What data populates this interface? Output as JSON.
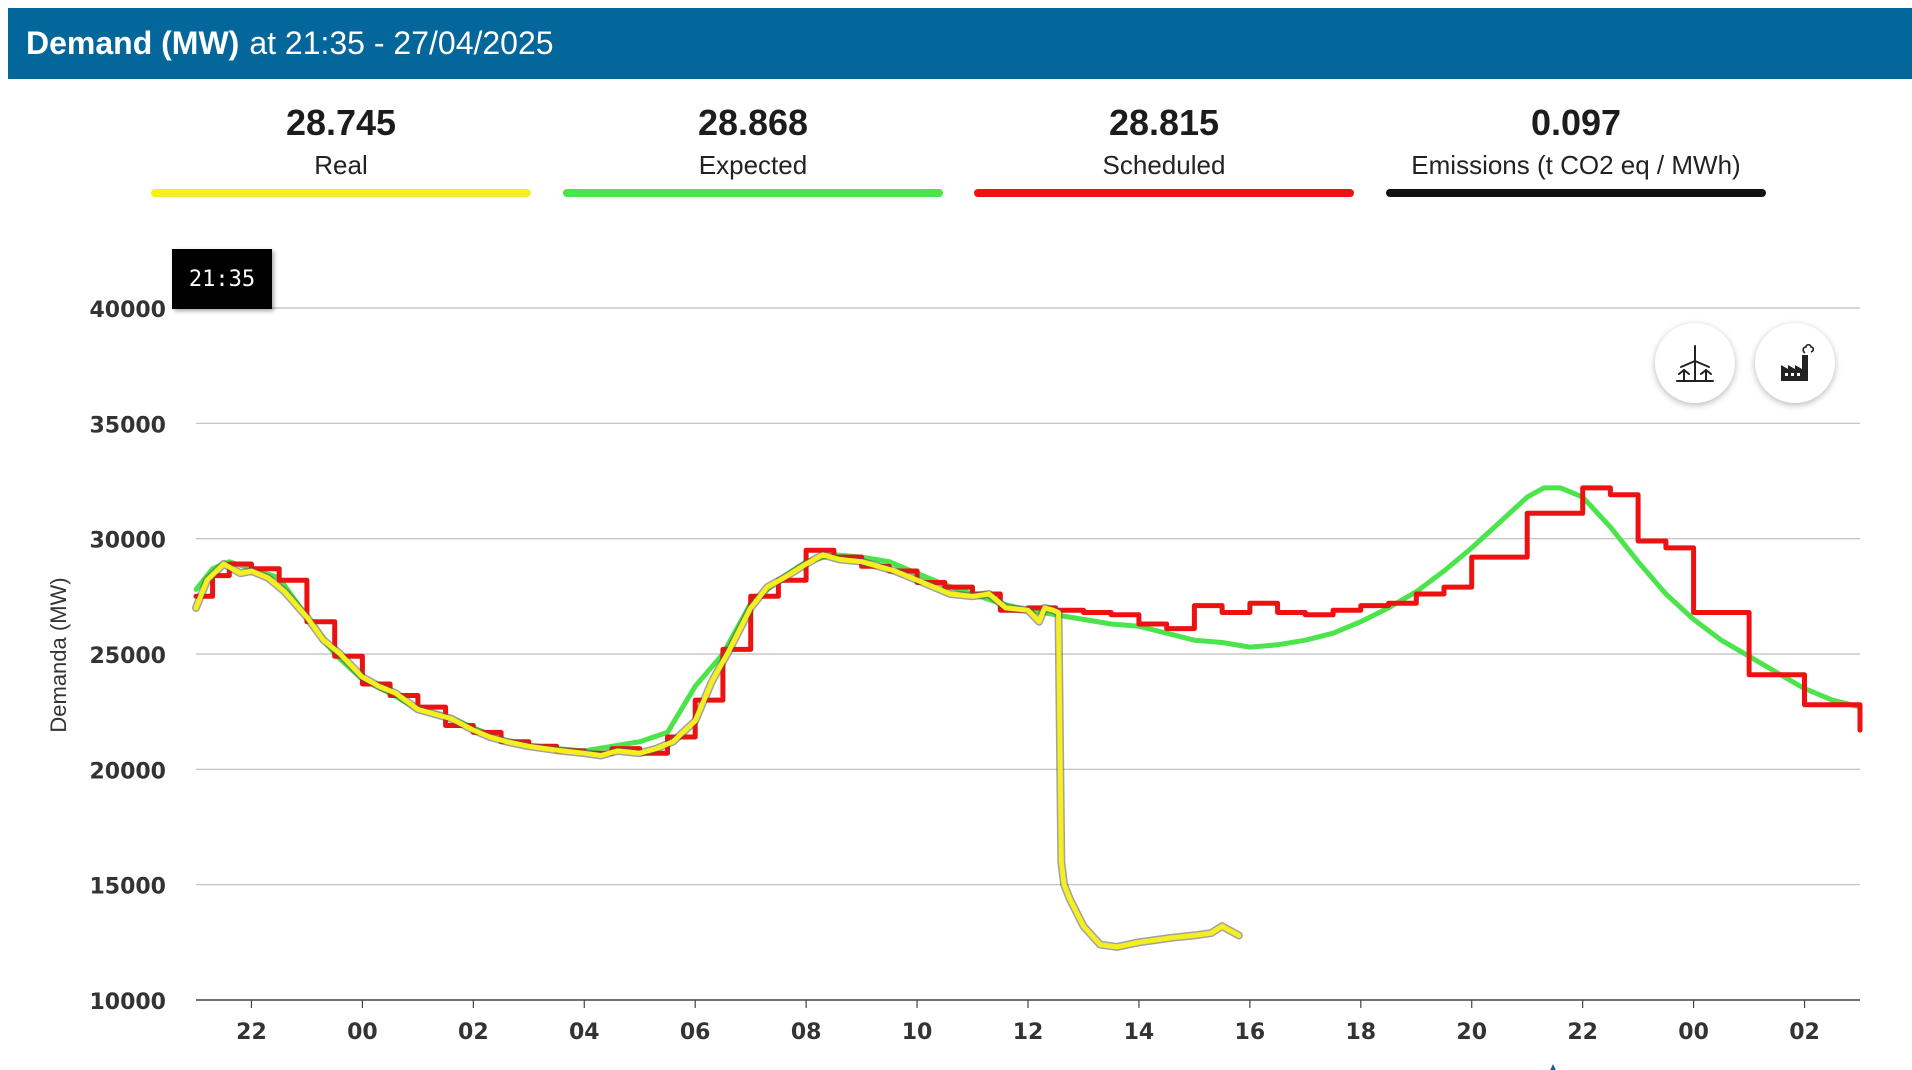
{
  "header": {
    "title": "Demand (MW)",
    "subtitle": "at 21:35 - 27/04/2025"
  },
  "stats": [
    {
      "value": "28.745",
      "label": "Real",
      "color": "#f5ef1f"
    },
    {
      "value": "28.868",
      "label": "Expected",
      "color": "#4be44b"
    },
    {
      "value": "28.815",
      "label": "Scheduled",
      "color": "#ee1111"
    },
    {
      "value": "0.097",
      "label": "Emissions (t CO2 eq / MWh)",
      "color": "#111111"
    }
  ],
  "tooltip": {
    "time": "21:35"
  },
  "icons": {
    "wind": "wind-turbine-icon",
    "factory": "factory-emissions-icon"
  },
  "chart_data": {
    "type": "line",
    "ylabel": "Demanda (MW)",
    "xlabel": "",
    "ylim": [
      10000,
      40000
    ],
    "yticks": [
      10000,
      15000,
      20000,
      25000,
      30000,
      35000,
      40000
    ],
    "xlim": [
      21,
      51
    ],
    "xticks": [
      {
        "hour": 22,
        "label": "22"
      },
      {
        "hour": 24,
        "label": "00"
      },
      {
        "hour": 26,
        "label": "02"
      },
      {
        "hour": 28,
        "label": "04"
      },
      {
        "hour": 30,
        "label": "06"
      },
      {
        "hour": 32,
        "label": "08"
      },
      {
        "hour": 34,
        "label": "10"
      },
      {
        "hour": 36,
        "label": "12"
      },
      {
        "hour": 38,
        "label": "14"
      },
      {
        "hour": 40,
        "label": "16"
      },
      {
        "hour": 42,
        "label": "18"
      },
      {
        "hour": 44,
        "label": "20"
      },
      {
        "hour": 46,
        "label": "22"
      },
      {
        "hour": 48,
        "label": "00"
      },
      {
        "hour": 50,
        "label": "02"
      }
    ],
    "grid": true,
    "series": [
      {
        "name": "Expected",
        "color": "#4be44b",
        "width": 5,
        "step": false,
        "x": [
          21,
          21.3,
          21.6,
          22,
          22.5,
          23,
          23.5,
          24,
          24.5,
          25,
          25.5,
          26,
          26.5,
          27,
          27.5,
          28,
          28.5,
          29,
          29.5,
          30,
          30.5,
          31,
          31.5,
          32,
          32.5,
          33,
          33.5,
          34,
          34.5,
          35,
          35.5,
          36,
          36.5,
          37,
          37.5,
          38,
          38.5,
          39,
          39.5,
          40,
          40.5,
          41,
          41.5,
          42,
          42.5,
          43,
          43.5,
          44,
          44.5,
          45,
          45.3,
          45.6,
          46,
          46.5,
          47,
          47.5,
          48,
          48.5,
          49,
          49.5,
          50,
          50.5,
          51
        ],
        "y": [
          27800,
          28700,
          29000,
          28700,
          28300,
          26600,
          25000,
          23900,
          23300,
          22600,
          22300,
          21800,
          21300,
          21000,
          20900,
          20800,
          21000,
          21200,
          21600,
          23600,
          25000,
          27200,
          28200,
          29000,
          29300,
          29200,
          29000,
          28500,
          28000,
          27600,
          27200,
          26900,
          26700,
          26500,
          26300,
          26200,
          25900,
          25600,
          25500,
          25300,
          25400,
          25600,
          25900,
          26400,
          27000,
          27700,
          28600,
          29600,
          30700,
          31800,
          32200,
          32200,
          31800,
          30500,
          29000,
          27600,
          26500,
          25600,
          24900,
          24200,
          23500,
          23000,
          22700
        ]
      },
      {
        "name": "Scheduled",
        "color": "#ee1111",
        "width": 5,
        "step": true,
        "x": [
          21,
          21.3,
          21.6,
          22,
          22.5,
          23,
          23.5,
          24,
          24.5,
          25,
          25.5,
          26,
          26.5,
          27,
          27.5,
          28,
          28.5,
          29,
          29.5,
          30,
          30.5,
          31,
          31.5,
          32,
          32.5,
          33,
          33.5,
          34,
          34.5,
          35,
          35.5,
          36,
          36.5,
          37,
          37.5,
          38,
          38.5,
          39,
          39.5,
          40,
          40.5,
          41,
          41.5,
          42,
          42.5,
          43,
          43.5,
          44,
          45,
          46,
          46.5,
          47,
          47.5,
          48,
          48.5,
          49,
          49.5,
          50,
          50.5,
          51
        ],
        "y": [
          27500,
          28400,
          28900,
          28700,
          28200,
          26400,
          24900,
          23700,
          23200,
          22700,
          21900,
          21600,
          21200,
          21000,
          20800,
          20700,
          20900,
          20700,
          21400,
          23000,
          25200,
          27500,
          28200,
          29500,
          29200,
          28800,
          28600,
          28100,
          27900,
          27600,
          26900,
          27000,
          26900,
          26800,
          26700,
          26300,
          26100,
          27100,
          26800,
          27200,
          26800,
          26700,
          26900,
          27100,
          27200,
          27600,
          27900,
          29200,
          31100,
          32200,
          31900,
          29900,
          29600,
          26800,
          26800,
          24100,
          24100,
          22800,
          22800,
          21700
        ]
      },
      {
        "name": "Real",
        "color": "#f5ef1f",
        "width": 5,
        "step": false,
        "x": [
          21,
          21.2,
          21.5,
          21.8,
          22,
          22.3,
          22.6,
          23,
          23.3,
          23.6,
          24,
          24.3,
          24.6,
          25,
          25.3,
          25.6,
          26,
          26.3,
          26.6,
          27,
          27.3,
          27.6,
          28,
          28.3,
          28.6,
          29,
          29.3,
          29.6,
          30,
          30.3,
          30.6,
          31,
          31.3,
          31.6,
          32,
          32.3,
          32.6,
          33,
          33.3,
          33.6,
          34,
          34.3,
          34.6,
          35,
          35.3,
          35.6,
          36,
          36.2,
          36.3,
          36.45,
          36.55,
          36.6,
          36.65,
          36.75,
          37,
          37.3,
          37.6,
          38,
          38.3,
          38.6,
          39,
          39.3,
          39.5,
          39.8
        ],
        "y": [
          27000,
          28200,
          28900,
          28500,
          28600,
          28300,
          27700,
          26600,
          25600,
          25000,
          24000,
          23600,
          23300,
          22600,
          22400,
          22200,
          21700,
          21400,
          21200,
          21000,
          20900,
          20800,
          20700,
          20600,
          20800,
          20700,
          20900,
          21200,
          22100,
          23800,
          25100,
          27000,
          27900,
          28300,
          28900,
          29300,
          29100,
          29000,
          28800,
          28600,
          28200,
          27900,
          27600,
          27500,
          27600,
          27000,
          26900,
          26400,
          27000,
          26900,
          26800,
          16000,
          15000,
          14400,
          13200,
          12400,
          12300,
          12500,
          12600,
          12700,
          12800,
          12900,
          13200,
          12800
        ]
      }
    ]
  }
}
